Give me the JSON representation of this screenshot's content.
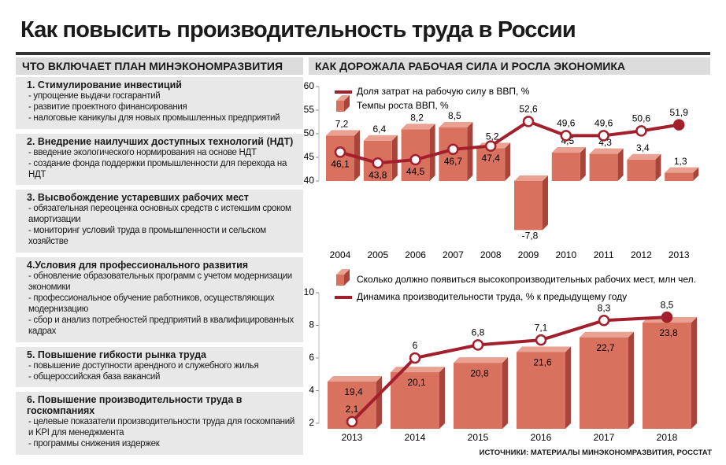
{
  "title": "Как повысить производительность труда в России",
  "plan": {
    "header": "ЧТО ВКЛЮЧАЕТ ПЛАН МИНЭКОНОМРАЗВИТИЯ",
    "sections": [
      {
        "title": "1. Стимулирование инвестиций",
        "items": [
          "- упрощение выдачи госгарантий",
          "- развитие проектного финансирования",
          "- налоговые каникулы для новых промышленных предприятий"
        ]
      },
      {
        "title": "2. Внедрение наилучших доступных технологий (НДТ)",
        "items": [
          "- введение экологического нормирования на основе НДТ",
          "- создание фонда поддержки промышленности для перехода на НДТ"
        ]
      },
      {
        "title": "3. Высвобождение устаревших рабочих мест",
        "items": [
          "- обязательная переоценка основных средств с истекшим сроком амортизации",
          "- мониторинг условий труда в промышленности и сельском хозяйстве"
        ]
      },
      {
        "title": "4.Условия для профессионального развития",
        "items": [
          "- обновление образовательных программ с учетом модернизации экономики",
          "- профессиональное обучение работников, осуществляющих модернизацию",
          "- сбор и анализ потребностей предприятий в квалифицированных кадрах"
        ]
      },
      {
        "title": "5. Повышение гибкости рынка труда",
        "items": [
          "- повышение доступности арендного и служебного жилья",
          "- общероссийская база вакансий"
        ]
      },
      {
        "title": "6. Повышение производительности труда в госкомпаниях",
        "items": [
          "- целевые показатели производительности труда для госкомпаний и KPI для менеджмента",
          "- программы снижения издержек"
        ]
      }
    ]
  },
  "economy_header": "КАК ДОРОЖАЛА РАБОЧАЯ СИЛА И РОСЛА ЭКОНОМИКА",
  "chart_data": [
    {
      "type": "combo",
      "categories": [
        "2004",
        "2005",
        "2006",
        "2007",
        "2008",
        "2009",
        "2010",
        "2011",
        "2012",
        "2013"
      ],
      "ylim": [
        40,
        60
      ],
      "yticks": [
        40,
        45,
        50,
        55,
        60
      ],
      "series": [
        {
          "name": "Доля затрат на рабочую силу в ВВП, %",
          "type": "line",
          "color": "#a31f2c",
          "values": [
            46.1,
            43.8,
            44.5,
            46.7,
            47.4,
            52.6,
            49.6,
            49.6,
            50.6,
            51.9
          ],
          "value_labels": [
            "46,1",
            "43,8",
            "44,5",
            "46,7",
            "47,4",
            "52,6",
            "49,6",
            "49,6",
            "50,6",
            "51,9"
          ]
        },
        {
          "name": "Темпы роста ВВП, %",
          "type": "bar",
          "color": "#d9715f",
          "values": [
            7.2,
            6.4,
            8.2,
            8.5,
            5.2,
            -7.8,
            4.5,
            4.3,
            3.4,
            1.3
          ],
          "value_labels": [
            "7,2",
            "6,4",
            "8,2",
            "8,5",
            "5,2",
            "-7,8",
            "4,5",
            "4,3",
            "3,4",
            "1,3"
          ]
        }
      ]
    },
    {
      "type": "combo",
      "categories": [
        "2013",
        "2014",
        "2015",
        "2016",
        "2017",
        "2018"
      ],
      "ylim": [
        2,
        10
      ],
      "yticks": [
        2,
        4,
        6,
        8,
        10
      ],
      "series": [
        {
          "name": "Сколько должно появиться высокопроизводительных рабочих мест, млн чел.",
          "type": "bar",
          "color": "#d9715f",
          "values": [
            19.4,
            20.1,
            20.8,
            21.6,
            22.7,
            23.8
          ],
          "value_labels": [
            "19,4",
            "20,1",
            "20,8",
            "21,6",
            "22,7",
            "23,8"
          ]
        },
        {
          "name": "Динамика производительности труда, % к предыдущему году",
          "type": "line",
          "color": "#a31f2c",
          "values": [
            2.1,
            6,
            6.8,
            7.1,
            8.3,
            8.5
          ],
          "value_labels": [
            "2,1",
            "6",
            "6,8",
            "7,1",
            "8,3",
            "8,5"
          ]
        }
      ]
    }
  ],
  "source": "ИСТОЧНИКИ: МАТЕРИАЛЫ МИНЭКОНОМРАЗВИТИЯ, РОССТАТ"
}
